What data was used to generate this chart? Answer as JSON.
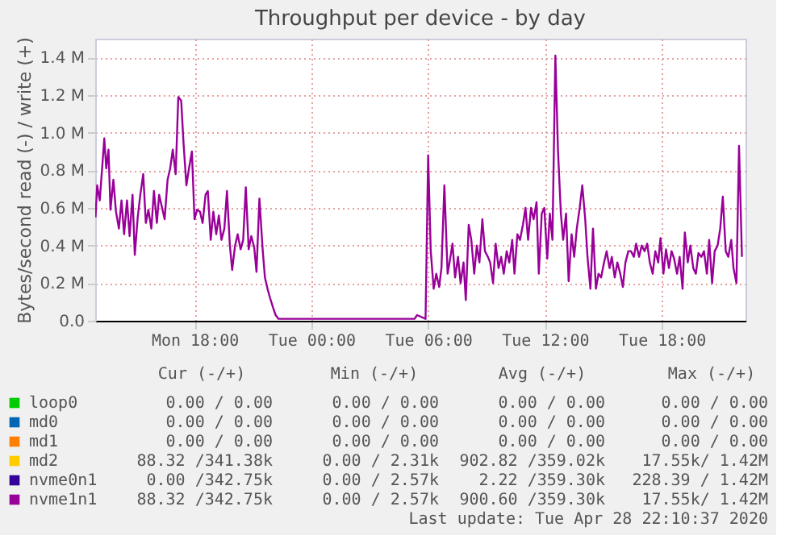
{
  "chart_data": {
    "type": "line",
    "title": "Throughput per device - by day",
    "ylabel": "Bytes/second read (-) / write (+)",
    "xlim": [
      "2020-04-27T12:54",
      "2020-04-28T22:18"
    ],
    "ylim": [
      0,
      1.5
    ],
    "xticks": [
      {
        "value": "2020-04-27T18:00",
        "label": "Mon 18:00"
      },
      {
        "value": "2020-04-28T00:00",
        "label": "Tue 00:00"
      },
      {
        "value": "2020-04-28T06:00",
        "label": "Tue 06:00"
      },
      {
        "value": "2020-04-28T12:00",
        "label": "Tue 12:00"
      },
      {
        "value": "2020-04-28T18:00",
        "label": "Tue 18:00"
      }
    ],
    "yticks": [
      {
        "value": 0,
        "label": "0.0"
      },
      {
        "value": 0.2,
        "label": "0.2 M"
      },
      {
        "value": 0.4,
        "label": "0.4 M"
      },
      {
        "value": 0.6,
        "label": "0.6 M"
      },
      {
        "value": 0.8,
        "label": "0.8 M"
      },
      {
        "value": 1.0,
        "label": "1.0 M"
      },
      {
        "value": 1.2,
        "label": "1.2 M"
      },
      {
        "value": 1.4,
        "label": "1.4 M"
      }
    ],
    "grid": true,
    "legend": "bottom",
    "series": [
      {
        "name": "loop0",
        "color": "#00cc00"
      },
      {
        "name": "md0",
        "color": "#0066b3"
      },
      {
        "name": "md1",
        "color": "#ff8000"
      },
      {
        "name": "md2",
        "color": "#ffcc00"
      },
      {
        "name": "nvme0n1",
        "color": "#330099"
      },
      {
        "name": "nvme1n1",
        "color": "#990099",
        "x": [
          "2020-04-27T12:55",
          "2020-04-27T13:00",
          "2020-04-27T13:08",
          "2020-04-27T13:17",
          "2020-04-27T13:22",
          "2020-04-27T13:28",
          "2020-04-27T13:35",
          "2020-04-27T13:41",
          "2020-04-27T13:50",
          "2020-04-27T13:58",
          "2020-04-27T14:07",
          "2020-04-27T14:15",
          "2020-04-27T14:23",
          "2020-04-27T14:32",
          "2020-04-27T14:40",
          "2020-04-27T14:49",
          "2020-04-27T14:56",
          "2020-04-27T15:05",
          "2020-04-27T15:13",
          "2020-04-27T15:22",
          "2020-04-27T15:30",
          "2020-04-27T15:38",
          "2020-04-27T15:47",
          "2020-04-27T15:55",
          "2020-04-27T16:04",
          "2020-04-27T16:11",
          "2020-04-27T16:28",
          "2020-04-27T16:37",
          "2020-04-27T16:45",
          "2020-04-27T16:53",
          "2020-04-27T17:02",
          "2020-04-27T17:10",
          "2020-04-27T17:19",
          "2020-04-27T17:26",
          "2020-04-27T17:35",
          "2020-04-27T17:43",
          "2020-04-27T17:52",
          "2020-04-27T18:00",
          "2020-04-27T18:08",
          "2020-04-27T18:17",
          "2020-04-27T18:25",
          "2020-04-27T18:34",
          "2020-04-27T18:41",
          "2020-04-27T18:50",
          "2020-04-27T18:58",
          "2020-04-27T19:07",
          "2020-04-27T19:15",
          "2020-04-27T19:23",
          "2020-04-27T19:32",
          "2020-04-27T19:40",
          "2020-04-27T19:49",
          "2020-04-27T19:56",
          "2020-04-27T20:05",
          "2020-04-27T20:13",
          "2020-04-27T20:22",
          "2020-04-27T20:30",
          "2020-04-27T20:38",
          "2020-04-27T20:47",
          "2020-04-27T20:55",
          "2020-04-27T21:04",
          "2020-04-27T21:11",
          "2020-04-27T21:20",
          "2020-04-27T21:30",
          "2020-04-27T21:37",
          "2020-04-27T21:45",
          "2020-04-27T21:53",
          "2020-04-27T22:02",
          "2020-04-27T22:10",
          "2020-04-27T22:19",
          "2020-04-28T00:00",
          "2020-04-28T03:00",
          "2020-04-28T05:18",
          "2020-04-28T05:26",
          "2020-04-28T05:52",
          "2020-04-28T06:00",
          "2020-04-28T06:08",
          "2020-04-28T06:17",
          "2020-04-28T06:25",
          "2020-04-28T06:34",
          "2020-04-28T06:41",
          "2020-04-28T06:50",
          "2020-04-28T07:00",
          "2020-04-28T07:06",
          "2020-04-28T07:15",
          "2020-04-28T07:23",
          "2020-04-28T07:32",
          "2020-04-28T07:40",
          "2020-04-28T07:49",
          "2020-04-28T07:56",
          "2020-04-28T08:05",
          "2020-04-28T08:13",
          "2020-04-28T08:22",
          "2020-04-28T08:30",
          "2020-04-28T08:38",
          "2020-04-28T08:47",
          "2020-04-28T08:55",
          "2020-04-28T09:04",
          "2020-04-28T09:11",
          "2020-04-28T09:20",
          "2020-04-28T09:28",
          "2020-04-28T09:37",
          "2020-04-28T09:45",
          "2020-04-28T09:53",
          "2020-04-28T10:02",
          "2020-04-28T10:10",
          "2020-04-28T10:19",
          "2020-04-28T10:26",
          "2020-04-28T10:35",
          "2020-04-28T10:43",
          "2020-04-28T10:52",
          "2020-04-28T11:00",
          "2020-04-28T11:08",
          "2020-04-28T11:17",
          "2020-04-28T11:25",
          "2020-04-28T11:34",
          "2020-04-28T11:41",
          "2020-04-28T11:50",
          "2020-04-28T11:58",
          "2020-04-28T12:07",
          "2020-04-28T12:15",
          "2020-04-28T12:23",
          "2020-04-28T12:32",
          "2020-04-28T12:40",
          "2020-04-28T12:49",
          "2020-04-28T12:56",
          "2020-04-28T13:05",
          "2020-04-28T13:13",
          "2020-04-28T13:22",
          "2020-04-28T13:30",
          "2020-04-28T13:38",
          "2020-04-28T13:47",
          "2020-04-28T13:55",
          "2020-04-28T14:04",
          "2020-04-28T14:11",
          "2020-04-28T14:20",
          "2020-04-28T14:28",
          "2020-04-28T14:37",
          "2020-04-28T14:45",
          "2020-04-28T14:53",
          "2020-04-28T15:02",
          "2020-04-28T15:10",
          "2020-04-28T15:19",
          "2020-04-28T15:26",
          "2020-04-28T15:35",
          "2020-04-28T15:43",
          "2020-04-28T15:52",
          "2020-04-28T16:00",
          "2020-04-28T16:08",
          "2020-04-28T16:17",
          "2020-04-28T16:25",
          "2020-04-28T16:34",
          "2020-04-28T16:41",
          "2020-04-28T16:50",
          "2020-04-28T16:58",
          "2020-04-28T17:07",
          "2020-04-28T17:15",
          "2020-04-28T17:23",
          "2020-04-28T17:32",
          "2020-04-28T17:40",
          "2020-04-28T17:49",
          "2020-04-28T17:56",
          "2020-04-28T18:05",
          "2020-04-28T18:13",
          "2020-04-28T18:22",
          "2020-04-28T18:30",
          "2020-04-28T18:38",
          "2020-04-28T18:47",
          "2020-04-28T18:55",
          "2020-04-28T19:04",
          "2020-04-28T19:11",
          "2020-04-28T19:20",
          "2020-04-28T19:28",
          "2020-04-28T19:37",
          "2020-04-28T19:45",
          "2020-04-28T19:53",
          "2020-04-28T20:02",
          "2020-04-28T20:10",
          "2020-04-28T20:19",
          "2020-04-28T20:26",
          "2020-04-28T20:35",
          "2020-04-28T20:43",
          "2020-04-28T20:52",
          "2020-04-28T21:00",
          "2020-04-28T21:08",
          "2020-04-28T21:17",
          "2020-04-28T21:25",
          "2020-04-28T21:34",
          "2020-04-28T21:41",
          "2020-04-28T21:50",
          "2020-04-28T21:58",
          "2020-04-28T22:07"
        ],
        "values": [
          0.55,
          0.72,
          0.64,
          0.85,
          0.97,
          0.81,
          0.91,
          0.59,
          0.75,
          0.58,
          0.49,
          0.64,
          0.46,
          0.64,
          0.45,
          0.67,
          0.35,
          0.55,
          0.67,
          0.78,
          0.52,
          0.59,
          0.49,
          0.69,
          0.52,
          0.67,
          0.54,
          0.75,
          0.81,
          0.91,
          0.78,
          1.19,
          1.17,
          0.95,
          0.72,
          0.81,
          0.9,
          0.54,
          0.59,
          0.58,
          0.52,
          0.67,
          0.69,
          0.43,
          0.58,
          0.46,
          0.56,
          0.43,
          0.49,
          0.69,
          0.4,
          0.27,
          0.4,
          0.46,
          0.38,
          0.43,
          0.71,
          0.38,
          0.45,
          0.39,
          0.26,
          0.65,
          0.38,
          0.23,
          0.17,
          0.12,
          0.07,
          0.03,
          0.01,
          0.01,
          0.01,
          0.01,
          0.03,
          0.01,
          0.88,
          0.37,
          0.17,
          0.25,
          0.18,
          0.28,
          0.72,
          0.25,
          0.31,
          0.41,
          0.23,
          0.34,
          0.2,
          0.31,
          0.11,
          0.51,
          0.43,
          0.25,
          0.4,
          0.31,
          0.54,
          0.37,
          0.34,
          0.31,
          0.2,
          0.41,
          0.28,
          0.34,
          0.25,
          0.37,
          0.31,
          0.43,
          0.25,
          0.46,
          0.43,
          0.51,
          0.6,
          0.43,
          0.6,
          0.54,
          0.63,
          0.25,
          0.57,
          0.6,
          0.33,
          0.57,
          0.43,
          1.41,
          0.91,
          0.57,
          0.43,
          0.57,
          0.21,
          0.46,
          0.34,
          0.49,
          0.6,
          0.72,
          0.54,
          0.34,
          0.17,
          0.49,
          0.17,
          0.25,
          0.23,
          0.31,
          0.37,
          0.28,
          0.34,
          0.23,
          0.31,
          0.25,
          0.18,
          0.31,
          0.37,
          0.37,
          0.34,
          0.41,
          0.34,
          0.4,
          0.37,
          0.41,
          0.31,
          0.25,
          0.37,
          0.31,
          0.44,
          0.25,
          0.38,
          0.28,
          0.37,
          0.33,
          0.25,
          0.34,
          0.17,
          0.47,
          0.31,
          0.4,
          0.28,
          0.25,
          0.36,
          0.34,
          0.37,
          0.25,
          0.43,
          0.2,
          0.37,
          0.4,
          0.49,
          0.66,
          0.37,
          0.34,
          0.43,
          0.28,
          0.2,
          0.93,
          0.34
        ]
      }
    ],
    "annotations": [
      "Cur (-/+)",
      "Min (-/+)",
      "Avg (-/+)",
      "Max (-/+)",
      "0.00 /  0.00",
      "0.00 /  0.00",
      "0.00 /  0.00",
      "0.00 /  0.00",
      "0.00 /  0.00",
      "0.00 /  0.00",
      "0.00 /  0.00",
      "0.00 /  0.00",
      "0.00 /  0.00",
      "0.00 /  0.00",
      "0.00 /  0.00",
      "0.00 /  0.00",
      "88.32 /341.38k",
      "0.00 /  2.31k",
      "902.82 /359.02k",
      "17.55k/  1.42M",
      "0.00 /342.75k",
      "0.00 /  2.57k",
      "2.22 /359.30k",
      "228.39 /  1.42M",
      "88.32 /342.75k",
      "0.00 /  2.57k",
      "900.60 /359.30k",
      "17.55k/  1.42M",
      "Last update: Tue Apr 28 22:10:37 2020"
    ]
  }
}
